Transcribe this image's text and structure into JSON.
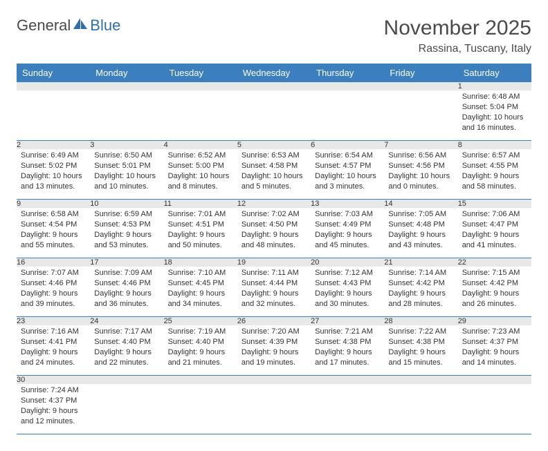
{
  "logo": {
    "text1": "General",
    "text2": "Blue"
  },
  "title": "November 2025",
  "location": "Rassina, Tuscany, Italy",
  "colors": {
    "header_bg": "#3b7fbf",
    "header_text": "#ffffff",
    "daynum_bg": "#e8e8e8",
    "line": "#3b7fbf",
    "text": "#333333",
    "logo_accent": "#2f6fae"
  },
  "daysOfWeek": [
    "Sunday",
    "Monday",
    "Tuesday",
    "Wednesday",
    "Thursday",
    "Friday",
    "Saturday"
  ],
  "firstDayOffset": 6,
  "days": [
    {
      "n": 1,
      "sunrise": "6:48 AM",
      "sunset": "5:04 PM",
      "daylight": "10 hours and 16 minutes."
    },
    {
      "n": 2,
      "sunrise": "6:49 AM",
      "sunset": "5:02 PM",
      "daylight": "10 hours and 13 minutes."
    },
    {
      "n": 3,
      "sunrise": "6:50 AM",
      "sunset": "5:01 PM",
      "daylight": "10 hours and 10 minutes."
    },
    {
      "n": 4,
      "sunrise": "6:52 AM",
      "sunset": "5:00 PM",
      "daylight": "10 hours and 8 minutes."
    },
    {
      "n": 5,
      "sunrise": "6:53 AM",
      "sunset": "4:58 PM",
      "daylight": "10 hours and 5 minutes."
    },
    {
      "n": 6,
      "sunrise": "6:54 AM",
      "sunset": "4:57 PM",
      "daylight": "10 hours and 3 minutes."
    },
    {
      "n": 7,
      "sunrise": "6:56 AM",
      "sunset": "4:56 PM",
      "daylight": "10 hours and 0 minutes."
    },
    {
      "n": 8,
      "sunrise": "6:57 AM",
      "sunset": "4:55 PM",
      "daylight": "9 hours and 58 minutes."
    },
    {
      "n": 9,
      "sunrise": "6:58 AM",
      "sunset": "4:54 PM",
      "daylight": "9 hours and 55 minutes."
    },
    {
      "n": 10,
      "sunrise": "6:59 AM",
      "sunset": "4:53 PM",
      "daylight": "9 hours and 53 minutes."
    },
    {
      "n": 11,
      "sunrise": "7:01 AM",
      "sunset": "4:51 PM",
      "daylight": "9 hours and 50 minutes."
    },
    {
      "n": 12,
      "sunrise": "7:02 AM",
      "sunset": "4:50 PM",
      "daylight": "9 hours and 48 minutes."
    },
    {
      "n": 13,
      "sunrise": "7:03 AM",
      "sunset": "4:49 PM",
      "daylight": "9 hours and 45 minutes."
    },
    {
      "n": 14,
      "sunrise": "7:05 AM",
      "sunset": "4:48 PM",
      "daylight": "9 hours and 43 minutes."
    },
    {
      "n": 15,
      "sunrise": "7:06 AM",
      "sunset": "4:47 PM",
      "daylight": "9 hours and 41 minutes."
    },
    {
      "n": 16,
      "sunrise": "7:07 AM",
      "sunset": "4:46 PM",
      "daylight": "9 hours and 39 minutes."
    },
    {
      "n": 17,
      "sunrise": "7:09 AM",
      "sunset": "4:46 PM",
      "daylight": "9 hours and 36 minutes."
    },
    {
      "n": 18,
      "sunrise": "7:10 AM",
      "sunset": "4:45 PM",
      "daylight": "9 hours and 34 minutes."
    },
    {
      "n": 19,
      "sunrise": "7:11 AM",
      "sunset": "4:44 PM",
      "daylight": "9 hours and 32 minutes."
    },
    {
      "n": 20,
      "sunrise": "7:12 AM",
      "sunset": "4:43 PM",
      "daylight": "9 hours and 30 minutes."
    },
    {
      "n": 21,
      "sunrise": "7:14 AM",
      "sunset": "4:42 PM",
      "daylight": "9 hours and 28 minutes."
    },
    {
      "n": 22,
      "sunrise": "7:15 AM",
      "sunset": "4:42 PM",
      "daylight": "9 hours and 26 minutes."
    },
    {
      "n": 23,
      "sunrise": "7:16 AM",
      "sunset": "4:41 PM",
      "daylight": "9 hours and 24 minutes."
    },
    {
      "n": 24,
      "sunrise": "7:17 AM",
      "sunset": "4:40 PM",
      "daylight": "9 hours and 22 minutes."
    },
    {
      "n": 25,
      "sunrise": "7:19 AM",
      "sunset": "4:40 PM",
      "daylight": "9 hours and 21 minutes."
    },
    {
      "n": 26,
      "sunrise": "7:20 AM",
      "sunset": "4:39 PM",
      "daylight": "9 hours and 19 minutes."
    },
    {
      "n": 27,
      "sunrise": "7:21 AM",
      "sunset": "4:38 PM",
      "daylight": "9 hours and 17 minutes."
    },
    {
      "n": 28,
      "sunrise": "7:22 AM",
      "sunset": "4:38 PM",
      "daylight": "9 hours and 15 minutes."
    },
    {
      "n": 29,
      "sunrise": "7:23 AM",
      "sunset": "4:37 PM",
      "daylight": "9 hours and 14 minutes."
    },
    {
      "n": 30,
      "sunrise": "7:24 AM",
      "sunset": "4:37 PM",
      "daylight": "9 hours and 12 minutes."
    }
  ],
  "labels": {
    "sunrise": "Sunrise:",
    "sunset": "Sunset:",
    "daylight": "Daylight:"
  }
}
